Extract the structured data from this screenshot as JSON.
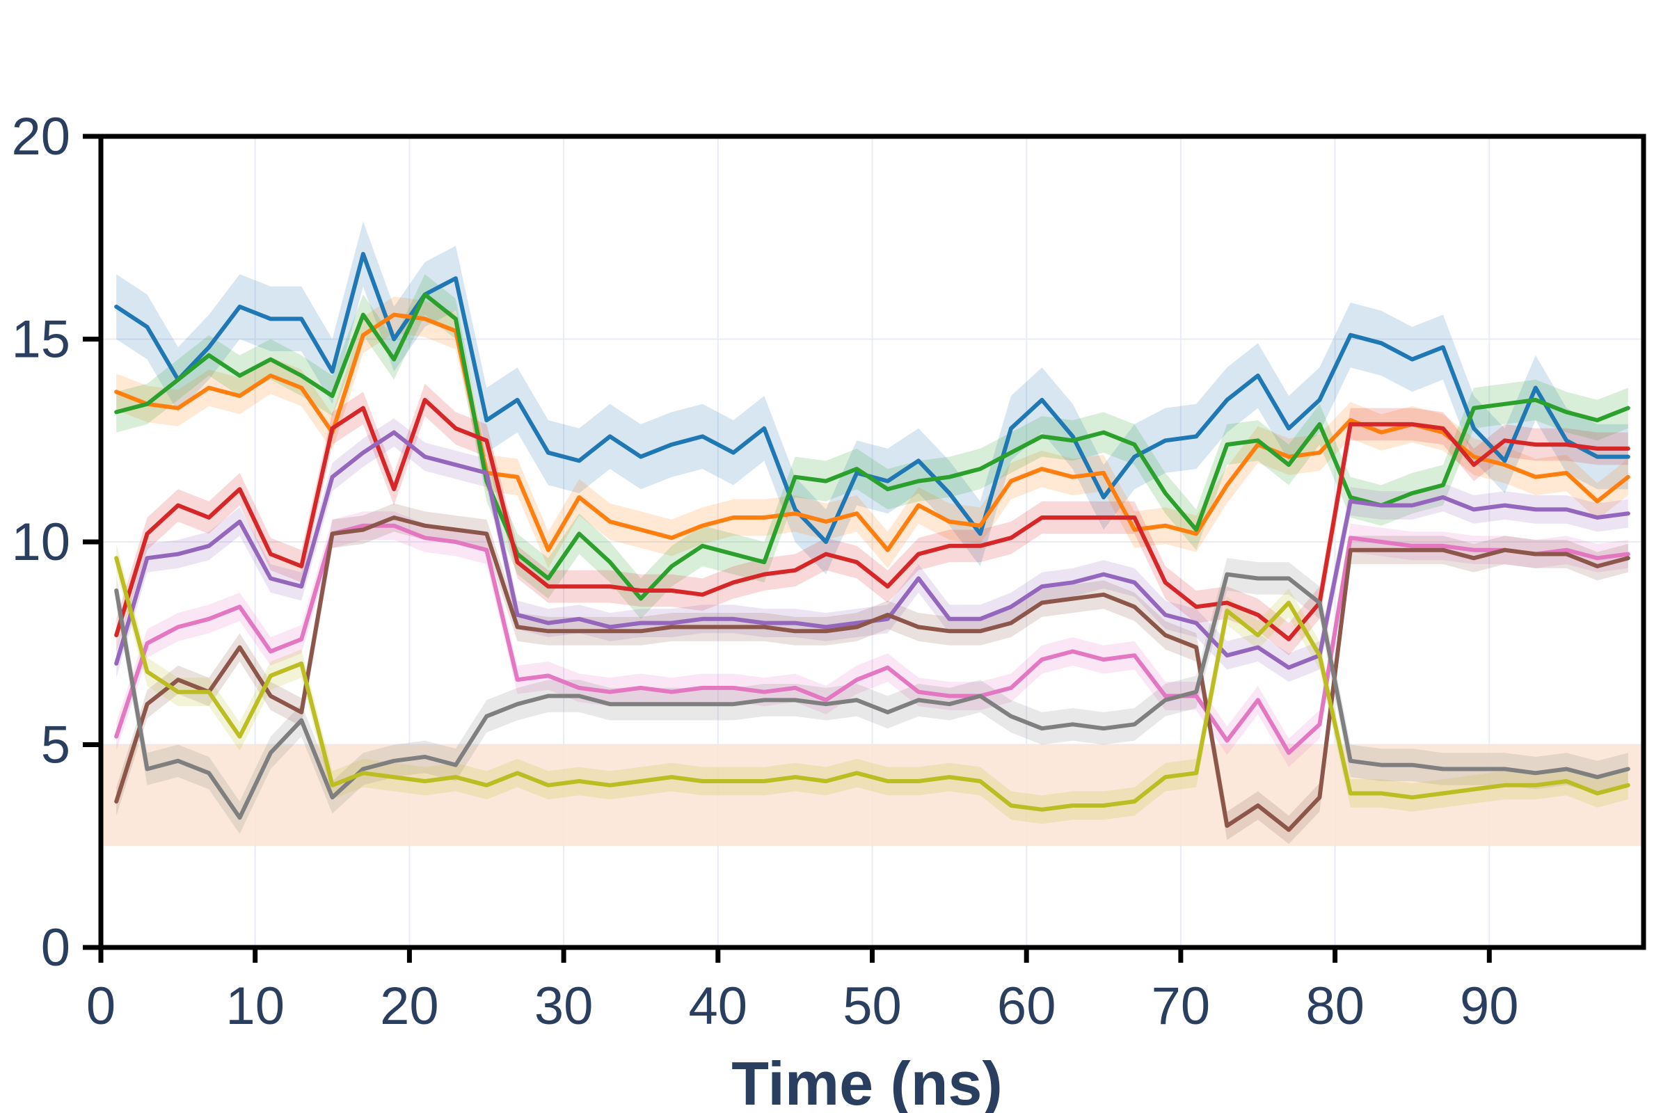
{
  "chart_data": {
    "type": "line",
    "title": "",
    "xlabel": "Time (ns)",
    "ylabel": "",
    "xlim": [
      0,
      100
    ],
    "ylim": [
      0,
      20
    ],
    "xticks": [
      "0",
      "10",
      "20",
      "30",
      "40",
      "50",
      "60",
      "70",
      "80",
      "90"
    ],
    "yticks": [
      "0",
      "5",
      "10",
      "15",
      "20"
    ],
    "grid": true,
    "legend": "none",
    "shaded_band": {
      "y0": 2.5,
      "y1": 5.0,
      "color": "#fbe6d6"
    },
    "x": [
      1,
      3,
      5,
      7,
      9,
      11,
      13,
      15,
      17,
      19,
      21,
      23,
      25,
      27,
      29,
      31,
      33,
      35,
      37,
      39,
      41,
      43,
      45,
      47,
      49,
      51,
      53,
      55,
      57,
      59,
      61,
      63,
      65,
      67,
      69,
      71,
      73,
      75,
      77,
      79,
      81,
      83,
      85,
      87,
      89,
      91,
      93,
      95,
      97,
      99
    ],
    "series": [
      {
        "color": "#1f77b4",
        "band": 0.8,
        "values": [
          15.8,
          15.3,
          14.0,
          14.8,
          15.8,
          15.5,
          15.5,
          14.2,
          17.1,
          15.0,
          16.1,
          16.5,
          13.0,
          13.5,
          12.2,
          12.0,
          12.6,
          12.1,
          12.4,
          12.6,
          12.2,
          12.8,
          10.8,
          10.0,
          11.7,
          11.5,
          12.0,
          11.2,
          10.2,
          12.8,
          13.5,
          12.6,
          11.1,
          12.1,
          12.5,
          12.6,
          13.5,
          14.1,
          12.8,
          13.5,
          15.1,
          14.9,
          14.5,
          14.8,
          12.8,
          12.0,
          13.8,
          12.5,
          12.1,
          12.1
        ]
      },
      {
        "color": "#ff7f0e",
        "band": 0.45,
        "values": [
          13.7,
          13.4,
          13.3,
          13.8,
          13.6,
          14.1,
          13.8,
          12.7,
          15.1,
          15.6,
          15.5,
          15.2,
          11.7,
          11.6,
          9.8,
          11.1,
          10.5,
          10.3,
          10.1,
          10.4,
          10.6,
          10.6,
          10.7,
          10.5,
          10.7,
          9.8,
          10.9,
          10.5,
          10.4,
          11.5,
          11.8,
          11.6,
          11.7,
          10.3,
          10.4,
          10.2,
          11.4,
          12.4,
          12.1,
          12.2,
          13.0,
          12.7,
          12.9,
          12.7,
          12.1,
          11.9,
          11.6,
          11.7,
          11.0,
          11.6
        ]
      },
      {
        "color": "#2ca02c",
        "band": 0.5,
        "values": [
          13.2,
          13.4,
          14.0,
          14.6,
          14.1,
          14.5,
          14.1,
          13.6,
          15.6,
          14.5,
          16.1,
          15.5,
          11.5,
          9.7,
          9.1,
          10.2,
          9.5,
          8.6,
          9.4,
          9.9,
          9.7,
          9.5,
          11.6,
          11.5,
          11.8,
          11.3,
          11.5,
          11.6,
          11.8,
          12.2,
          12.6,
          12.5,
          12.7,
          12.4,
          11.2,
          10.3,
          12.4,
          12.5,
          11.9,
          12.9,
          11.1,
          10.9,
          11.2,
          11.4,
          13.3,
          13.4,
          13.5,
          13.2,
          13.0,
          13.3
        ]
      },
      {
        "color": "#d62728",
        "band": 0.4,
        "values": [
          7.7,
          10.2,
          10.9,
          10.6,
          11.3,
          9.7,
          9.4,
          12.8,
          13.3,
          11.3,
          13.5,
          12.8,
          12.5,
          9.5,
          8.9,
          8.9,
          8.9,
          8.8,
          8.8,
          8.7,
          9.0,
          9.2,
          9.3,
          9.7,
          9.5,
          8.9,
          9.7,
          9.9,
          9.9,
          10.1,
          10.6,
          10.6,
          10.6,
          10.6,
          9.0,
          8.4,
          8.5,
          8.2,
          7.6,
          8.5,
          12.9,
          12.9,
          12.9,
          12.8,
          11.9,
          12.5,
          12.4,
          12.4,
          12.3,
          12.3
        ]
      },
      {
        "color": "#9467bd",
        "band": 0.35,
        "values": [
          7.0,
          9.6,
          9.7,
          9.9,
          10.5,
          9.1,
          8.9,
          11.6,
          12.2,
          12.7,
          12.1,
          11.9,
          11.7,
          8.2,
          8.0,
          8.1,
          7.9,
          8.0,
          8.0,
          8.1,
          8.1,
          8.0,
          8.0,
          7.9,
          8.0,
          8.1,
          9.1,
          8.1,
          8.1,
          8.4,
          8.9,
          9.0,
          9.2,
          9.0,
          8.2,
          8.0,
          7.2,
          7.4,
          6.9,
          7.2,
          11.0,
          10.9,
          10.9,
          11.1,
          10.8,
          10.9,
          10.8,
          10.8,
          10.6,
          10.7
        ]
      },
      {
        "color": "#e377c2",
        "band": 0.35,
        "values": [
          5.2,
          7.5,
          7.9,
          8.1,
          8.4,
          7.3,
          7.6,
          10.2,
          10.4,
          10.4,
          10.1,
          10.0,
          9.8,
          6.6,
          6.7,
          6.4,
          6.3,
          6.4,
          6.3,
          6.4,
          6.4,
          6.3,
          6.4,
          6.1,
          6.6,
          6.9,
          6.3,
          6.2,
          6.2,
          6.4,
          7.1,
          7.3,
          7.1,
          7.2,
          6.2,
          6.2,
          5.1,
          6.1,
          4.8,
          5.5,
          10.1,
          10.0,
          9.9,
          9.9,
          9.8,
          9.8,
          9.7,
          9.8,
          9.6,
          9.7
        ]
      },
      {
        "color": "#8c564b",
        "band": 0.35,
        "values": [
          3.6,
          6.0,
          6.6,
          6.3,
          7.4,
          6.2,
          5.8,
          10.2,
          10.3,
          10.6,
          10.4,
          10.3,
          10.2,
          7.9,
          7.8,
          7.8,
          7.8,
          7.8,
          7.9,
          7.9,
          7.9,
          7.9,
          7.8,
          7.8,
          7.9,
          8.2,
          7.9,
          7.8,
          7.8,
          8.0,
          8.5,
          8.6,
          8.7,
          8.4,
          7.7,
          7.4,
          3.0,
          3.5,
          2.9,
          3.7,
          9.8,
          9.8,
          9.8,
          9.8,
          9.6,
          9.8,
          9.7,
          9.7,
          9.4,
          9.6
        ]
      },
      {
        "color": "#7f7f7f",
        "band": 0.4,
        "values": [
          8.8,
          4.4,
          4.6,
          4.3,
          3.2,
          4.8,
          5.6,
          3.7,
          4.4,
          4.6,
          4.7,
          4.5,
          5.7,
          6.0,
          6.2,
          6.2,
          6.0,
          6.0,
          6.0,
          6.0,
          6.0,
          6.1,
          6.1,
          6.0,
          6.1,
          5.8,
          6.1,
          6.0,
          6.2,
          5.7,
          5.4,
          5.5,
          5.4,
          5.5,
          6.1,
          6.3,
          9.2,
          9.1,
          9.1,
          8.5,
          4.6,
          4.5,
          4.5,
          4.4,
          4.4,
          4.4,
          4.3,
          4.4,
          4.2,
          4.4
        ]
      },
      {
        "color": "#bcbd22",
        "band": 0.35,
        "values": [
          9.6,
          6.8,
          6.3,
          6.3,
          5.2,
          6.7,
          7.0,
          4.0,
          4.3,
          4.2,
          4.1,
          4.2,
          4.0,
          4.3,
          4.0,
          4.1,
          4.0,
          4.1,
          4.2,
          4.1,
          4.1,
          4.1,
          4.2,
          4.1,
          4.3,
          4.1,
          4.1,
          4.2,
          4.1,
          3.5,
          3.4,
          3.5,
          3.5,
          3.6,
          4.2,
          4.3,
          8.3,
          7.7,
          8.5,
          7.2,
          3.8,
          3.8,
          3.7,
          3.8,
          3.9,
          4.0,
          4.0,
          4.1,
          3.8,
          4.0
        ]
      }
    ]
  }
}
